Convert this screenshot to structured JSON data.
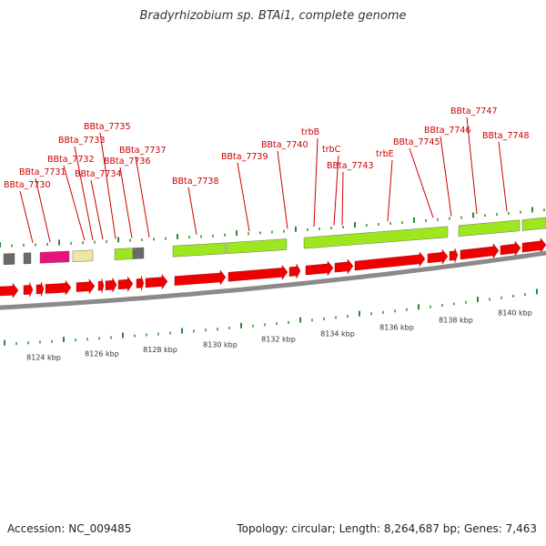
{
  "title": "Bradyrhizobium sp. BTAi1, complete genome",
  "footer": {
    "accession": "Accession: NC_009485",
    "stats": "Topology: circular; Length: 8,264,687 bp; Genes: 7,463"
  },
  "colors": {
    "label_red": "#cc0000",
    "gene_red": "#ee0000",
    "feature_green": "#9ee61e",
    "feature_magenta": "#e8127c",
    "feature_khaki": "#efe4a0",
    "feature_gray": "#6a6a6a",
    "tick_green": "#2e8b2e",
    "backbone_gray": "#8a8a8a"
  },
  "kbp_labels": [
    "8124 kbp",
    "8126 kbp",
    "8128 kbp",
    "8130 kbp",
    "8132 kbp",
    "8134 kbp",
    "8136 kbp",
    "8138 kbp",
    "8140 kbp"
  ],
  "gene_labels": [
    "BBta_7730",
    "BBta_7731",
    "BBta_7732",
    "BBta_7733",
    "BBta_7734",
    "BBta_7735",
    "BBta_7736",
    "BBta_7737",
    "BBta_7738",
    "BBta_7739",
    "BBta_7740",
    "trbB",
    "trbC",
    "BBta_7743",
    "trbE",
    "BBta_7745",
    "BBta_7746",
    "BBta_7747",
    "BBta_7748"
  ]
}
